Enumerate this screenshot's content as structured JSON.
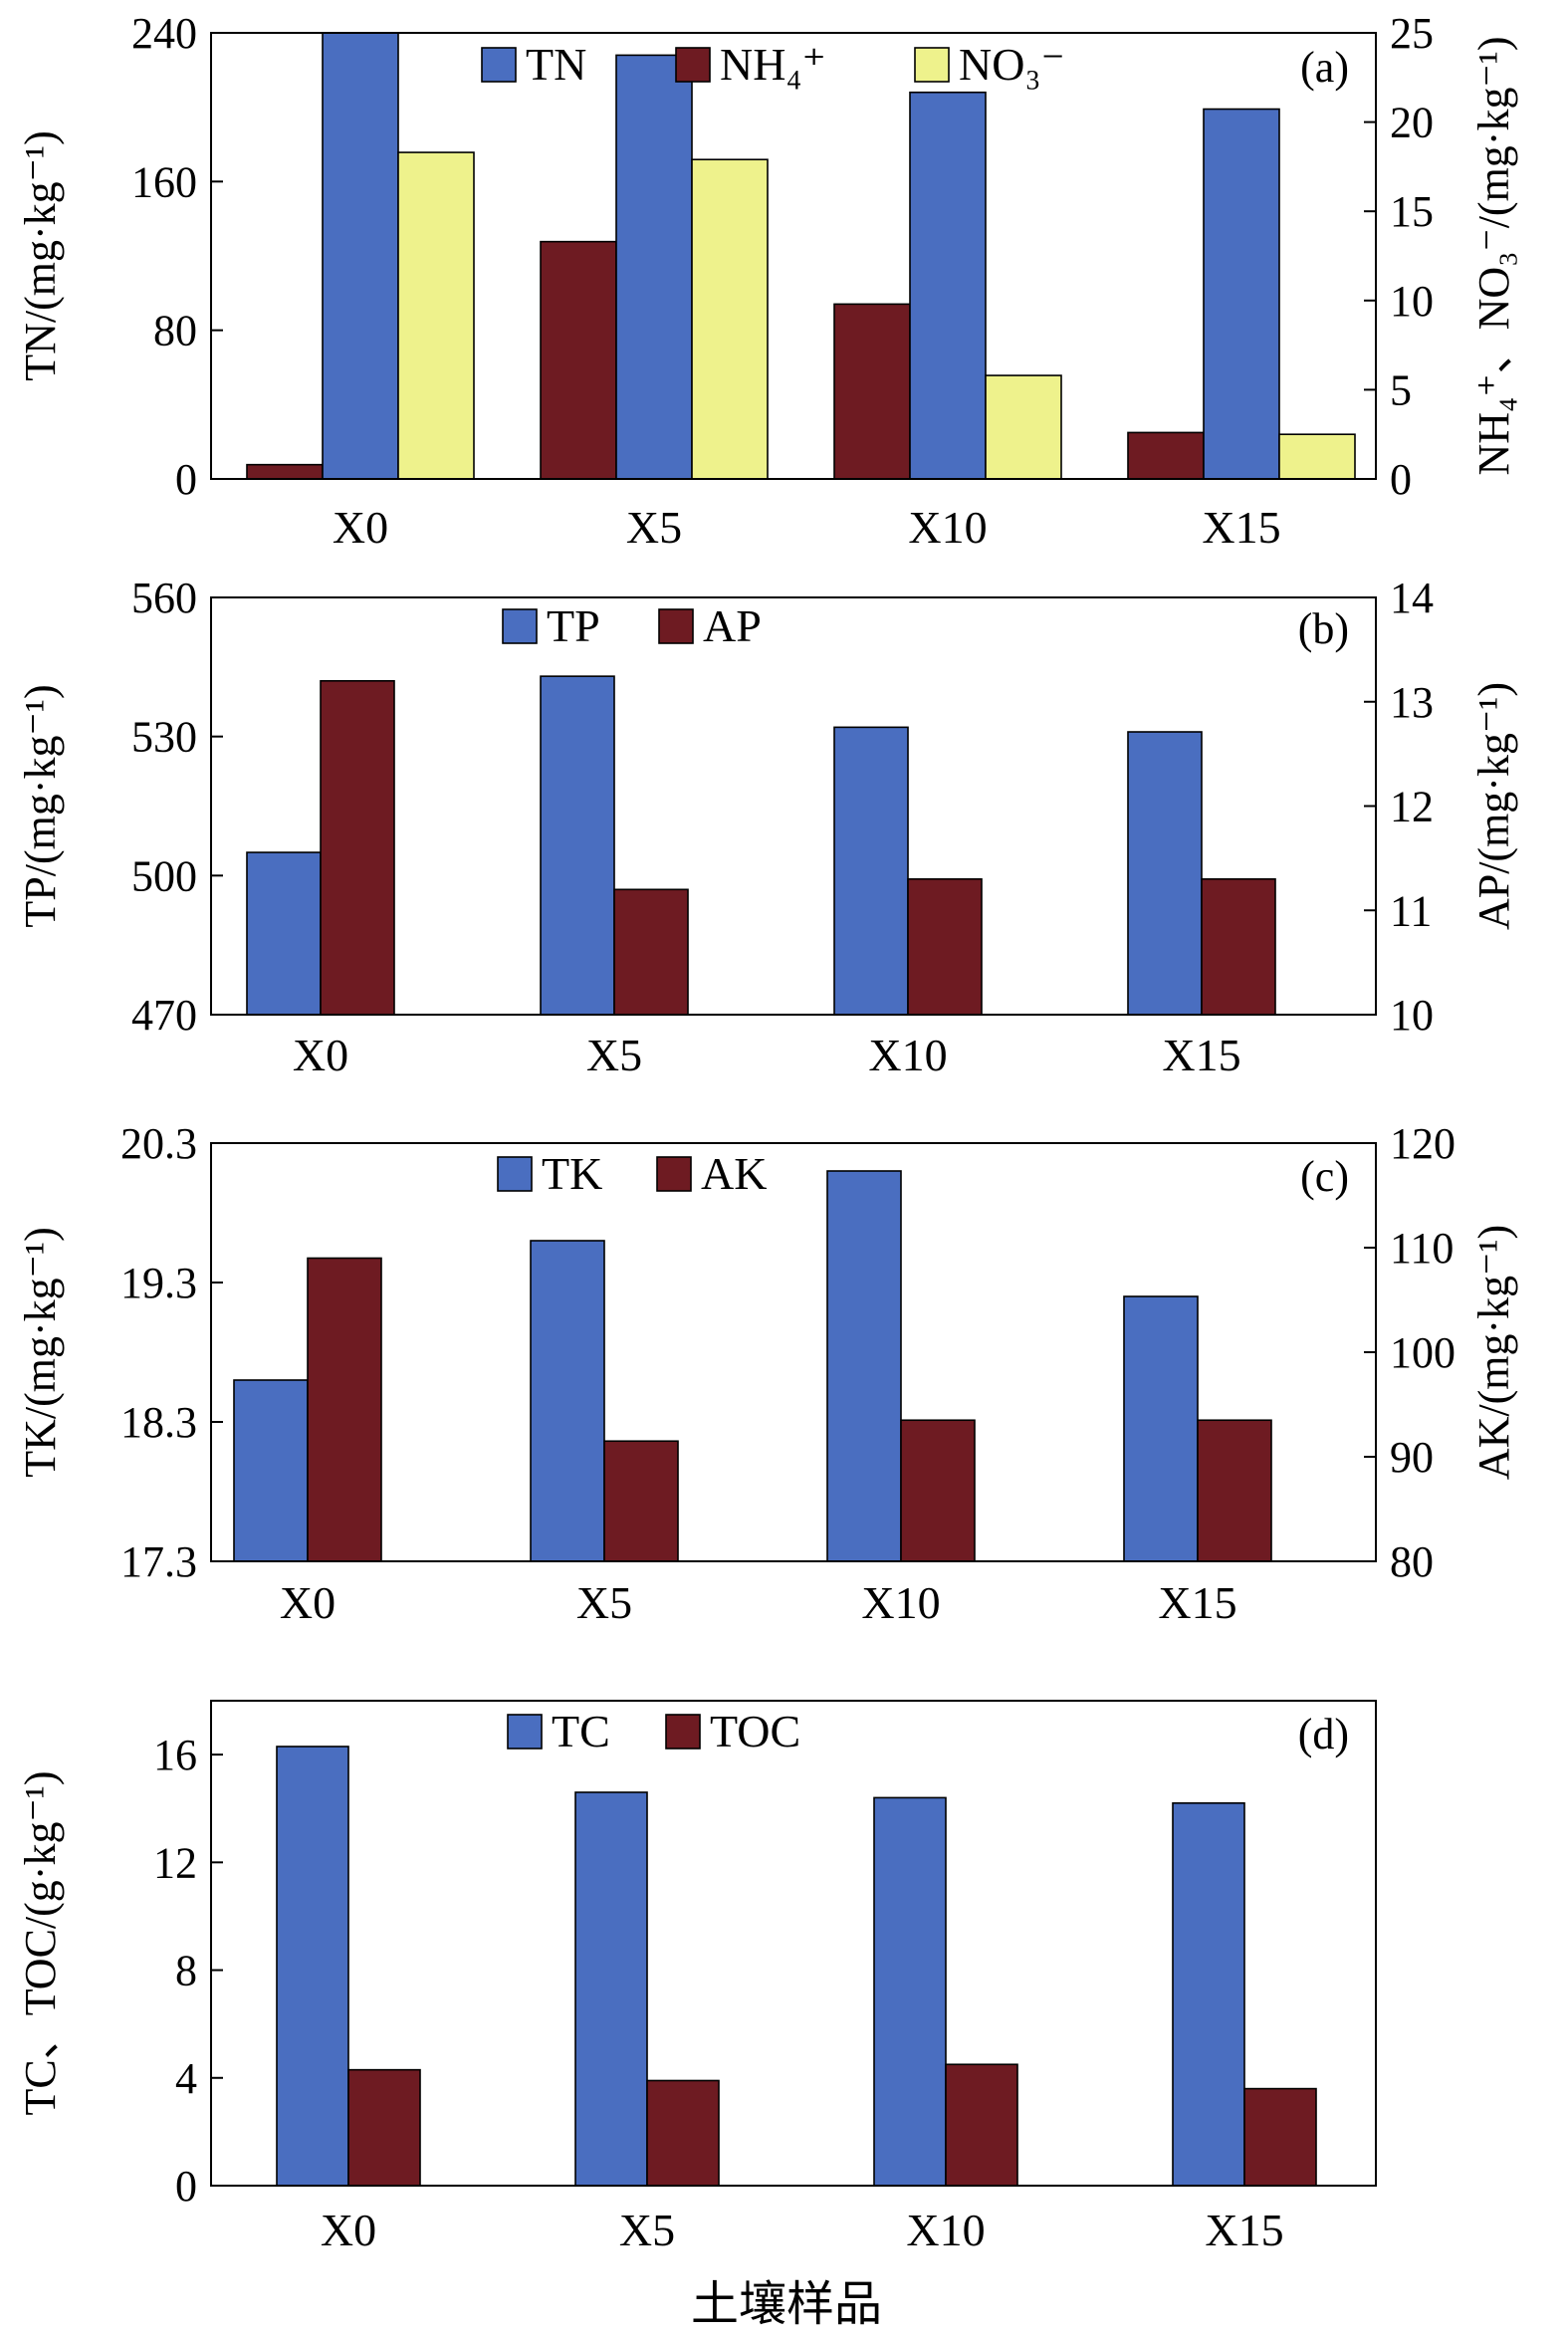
{
  "colors": {
    "blue": "#4A6EC0",
    "maroon": "#6E1B22",
    "yellow": "#EEF28C",
    "stroke": "#000000"
  },
  "figure": {
    "xlabel": "土壤样品"
  },
  "chart_data": [
    {
      "type": "bar",
      "panel": "(a)",
      "categories": [
        "X0",
        "X5",
        "X10",
        "X15"
      ],
      "series": [
        {
          "name": "NH₄⁺",
          "axis": "right",
          "color": "#6E1B22",
          "values": [
            0.8,
            13.3,
            9.8,
            2.6
          ]
        },
        {
          "name": "TN",
          "axis": "left",
          "color": "#4A6EC0",
          "values": [
            240,
            228,
            208,
            199
          ]
        },
        {
          "name": "NO₃⁻",
          "axis": "right",
          "color": "#EEF28C",
          "values": [
            18.3,
            17.9,
            5.8,
            2.5
          ]
        }
      ],
      "legend_order": [
        1,
        0,
        2
      ],
      "ylabel_left": "TN/(mg·kg⁻¹)",
      "ylabel_right": "NH₄⁺、NO₃⁻/(mg·kg⁻¹)",
      "ylim_left": [
        0,
        240
      ],
      "ylim_right": [
        0,
        25
      ],
      "yticks_left": [
        0,
        80,
        160,
        240
      ],
      "yticks_right": [
        0,
        5,
        10,
        15,
        20,
        25
      ]
    },
    {
      "type": "bar",
      "panel": "(b)",
      "categories": [
        "X0",
        "X5",
        "X10",
        "X15"
      ],
      "series": [
        {
          "name": "TP",
          "axis": "left",
          "color": "#4A6EC0",
          "values": [
            505,
            543,
            532,
            531
          ]
        },
        {
          "name": "AP",
          "axis": "right",
          "color": "#6E1B22",
          "values": [
            13.2,
            11.2,
            11.3,
            11.3
          ]
        }
      ],
      "legend_order": [
        0,
        1
      ],
      "ylabel_left": "TP/(mg·kg⁻¹)",
      "ylabel_right": "AP/(mg·kg⁻¹)",
      "ylim_left": [
        470,
        560
      ],
      "ylim_right": [
        10,
        14
      ],
      "yticks_left": [
        470,
        500,
        530,
        560
      ],
      "yticks_right": [
        10,
        11,
        12,
        13,
        14
      ]
    },
    {
      "type": "bar",
      "panel": "(c)",
      "categories": [
        "X0",
        "X5",
        "X10",
        "X15"
      ],
      "series": [
        {
          "name": "TK",
          "axis": "left",
          "color": "#4A6EC0",
          "values": [
            18.6,
            19.6,
            20.1,
            19.2
          ]
        },
        {
          "name": "AK",
          "axis": "right",
          "color": "#6E1B22",
          "values": [
            109,
            91.5,
            93.5,
            93.5
          ]
        }
      ],
      "legend_order": [
        0,
        1
      ],
      "ylabel_left": "TK/(mg·kg⁻¹)",
      "ylabel_right": "AK/(mg·kg⁻¹)",
      "ylim_left": [
        17.3,
        20.3
      ],
      "ylim_right": [
        80,
        120
      ],
      "yticks_left": [
        17.3,
        18.3,
        19.3,
        20.3
      ],
      "yticks_right": [
        80,
        90,
        100,
        110,
        120
      ]
    },
    {
      "type": "bar",
      "panel": "(d)",
      "categories": [
        "X0",
        "X5",
        "X10",
        "X15"
      ],
      "series": [
        {
          "name": "TC",
          "axis": "left",
          "color": "#4A6EC0",
          "values": [
            16.3,
            14.6,
            14.4,
            14.2
          ]
        },
        {
          "name": "TOC",
          "axis": "left",
          "color": "#6E1B22",
          "values": [
            4.3,
            3.9,
            4.5,
            3.6
          ]
        }
      ],
      "legend_order": [
        0,
        1
      ],
      "ylabel_left": "TC、TOC/(g·kg⁻¹)",
      "ylabel_right": "",
      "ylim_left": [
        0,
        18
      ],
      "ylim_right": null,
      "yticks_left": [
        0,
        4,
        8,
        12,
        16
      ],
      "yticks_right": []
    }
  ]
}
